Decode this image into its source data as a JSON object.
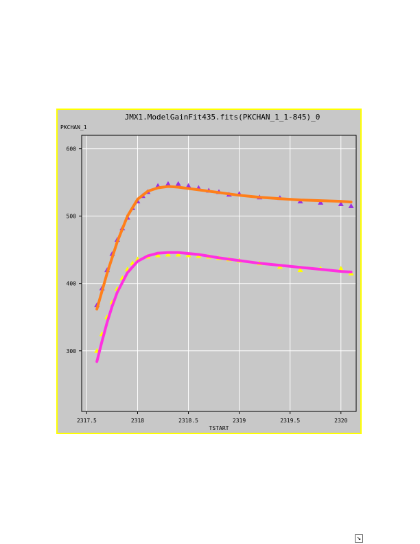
{
  "chart_data": {
    "type": "scatter",
    "title": "JMX1.ModelGainFit435.fits(PKCHAN_1_1-845)_0",
    "xlabel": "TSTART",
    "ylabel": "PKCHAN_1",
    "xlim": [
      2317.45,
      2320.15
    ],
    "ylim": [
      210,
      620
    ],
    "xticks": [
      2317.5,
      2318,
      2318.5,
      2319,
      2319.5,
      2320
    ],
    "xtick_labels": [
      "2317.5",
      "2318",
      "2318.5",
      "2319",
      "2319.5",
      "2320"
    ],
    "yticks": [
      300,
      400,
      500,
      600
    ],
    "ytick_labels": [
      "300",
      "400",
      "500",
      "600"
    ],
    "grid": true,
    "series": [
      {
        "role": "measured points (upper)",
        "marker": "triangle",
        "color": "#9a30e0",
        "x": [
          2317.6,
          2317.65,
          2317.7,
          2317.75,
          2317.8,
          2317.85,
          2317.9,
          2317.95,
          2318.0,
          2318.05,
          2318.1,
          2318.2,
          2318.3,
          2318.4,
          2318.5,
          2318.6,
          2318.7,
          2318.8,
          2318.9,
          2319.0,
          2319.2,
          2319.4,
          2319.6,
          2319.8,
          2320.0,
          2320.1
        ],
        "values": [
          368,
          393,
          420,
          444,
          465,
          482,
          498,
          512,
          522,
          530,
          536,
          545,
          548,
          548,
          545,
          542,
          538,
          536,
          532,
          533,
          528,
          527,
          522,
          520,
          518,
          515
        ]
      },
      {
        "role": "model fit (upper)",
        "marker": "line",
        "color": "#ff7f1a",
        "x": [
          2317.6,
          2317.7,
          2317.8,
          2317.9,
          2318.0,
          2318.1,
          2318.2,
          2318.3,
          2318.4,
          2318.6,
          2318.8,
          2319.0,
          2319.2,
          2319.4,
          2319.6,
          2319.8,
          2320.0,
          2320.1
        ],
        "values": [
          362,
          415,
          462,
          500,
          525,
          537,
          542,
          544,
          543,
          539,
          535,
          531,
          528,
          526,
          524,
          523,
          522,
          521
        ]
      },
      {
        "role": "measured points (lower)",
        "marker": "triangle",
        "color": "#ffff00",
        "x": [
          2317.6,
          2317.65,
          2317.7,
          2317.75,
          2317.8,
          2317.85,
          2317.9,
          2317.95,
          2318.0,
          2318.1,
          2318.2,
          2318.3,
          2318.4,
          2318.5,
          2318.6,
          2318.7,
          2318.8,
          2318.9,
          2319.0,
          2319.2,
          2319.4,
          2319.6,
          2319.8,
          2320.0,
          2320.1
        ],
        "values": [
          300,
          325,
          350,
          372,
          392,
          408,
          421,
          430,
          436,
          440,
          442,
          443,
          443,
          442,
          441,
          440,
          438,
          436,
          434,
          430,
          425,
          420,
          422,
          422,
          415
        ]
      },
      {
        "role": "model fit (lower)",
        "marker": "line",
        "color": "#ff30e0",
        "x": [
          2317.6,
          2317.65,
          2317.7,
          2317.75,
          2317.8,
          2317.9,
          2318.0,
          2318.1,
          2318.2,
          2318.3,
          2318.4,
          2318.6,
          2318.8,
          2319.0,
          2319.2,
          2319.4,
          2319.6,
          2319.8,
          2320.0,
          2320.1
        ],
        "values": [
          284,
          314,
          342,
          366,
          387,
          416,
          433,
          441,
          445,
          446,
          446,
          443,
          438,
          434,
          430,
          427,
          424,
          421,
          418,
          417
        ]
      }
    ]
  },
  "colors": {
    "frame_border": "#ffff00",
    "plot_background": "#c8c8c8",
    "grid": "#ffffff",
    "axis": "#000000"
  },
  "controls": {
    "resize_icon": "↘"
  }
}
